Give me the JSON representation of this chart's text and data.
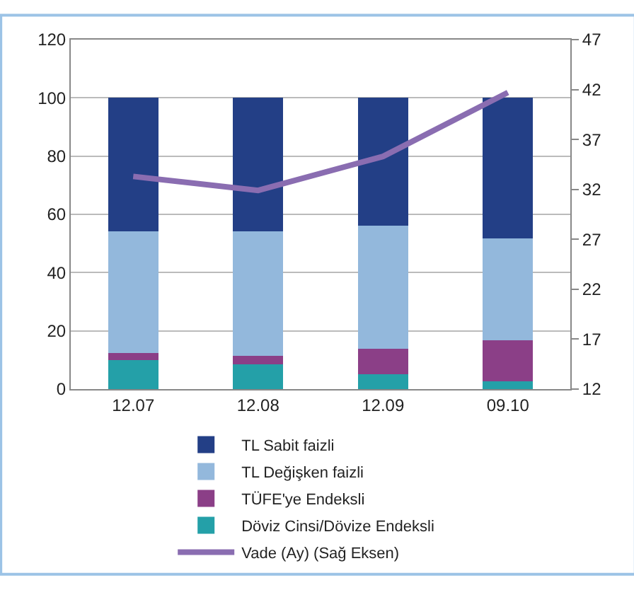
{
  "chart_data": {
    "type": "bar",
    "stacked": true,
    "categories": [
      "12.07",
      "12.08",
      "12.09",
      "09.10"
    ],
    "series": [
      {
        "name": "Döviz Cinsi/Dövize Endeksli",
        "color": "#24a0a8",
        "values": [
          10.0,
          8.6,
          5.0,
          2.6
        ]
      },
      {
        "name": "TÜFE'ye Endeksli",
        "color": "#8b3f87",
        "values": [
          2.5,
          2.7,
          8.9,
          14.2
        ]
      },
      {
        "name": "TL Değişken faizli",
        "color": "#93b8dc",
        "values": [
          41.6,
          42.8,
          42.1,
          34.9
        ]
      },
      {
        "name": "TL Sabit faizli",
        "color": "#233f86",
        "values": [
          45.9,
          45.9,
          44.0,
          48.3
        ]
      },
      {
        "name": "Vade (Ay) (Sağ Eksen)",
        "type": "line",
        "axis": "y2",
        "color": "#8a6db1",
        "values": [
          33.3,
          31.9,
          35.3,
          41.7
        ]
      }
    ],
    "ylim": [
      0,
      120
    ],
    "yticks": [
      0,
      20,
      40,
      60,
      80,
      100,
      120
    ],
    "y2lim": [
      12,
      47
    ],
    "y2ticks": [
      12,
      17,
      22,
      27,
      32,
      37,
      42,
      47
    ],
    "grid": "y",
    "legend": "bottom",
    "marker": "none"
  }
}
